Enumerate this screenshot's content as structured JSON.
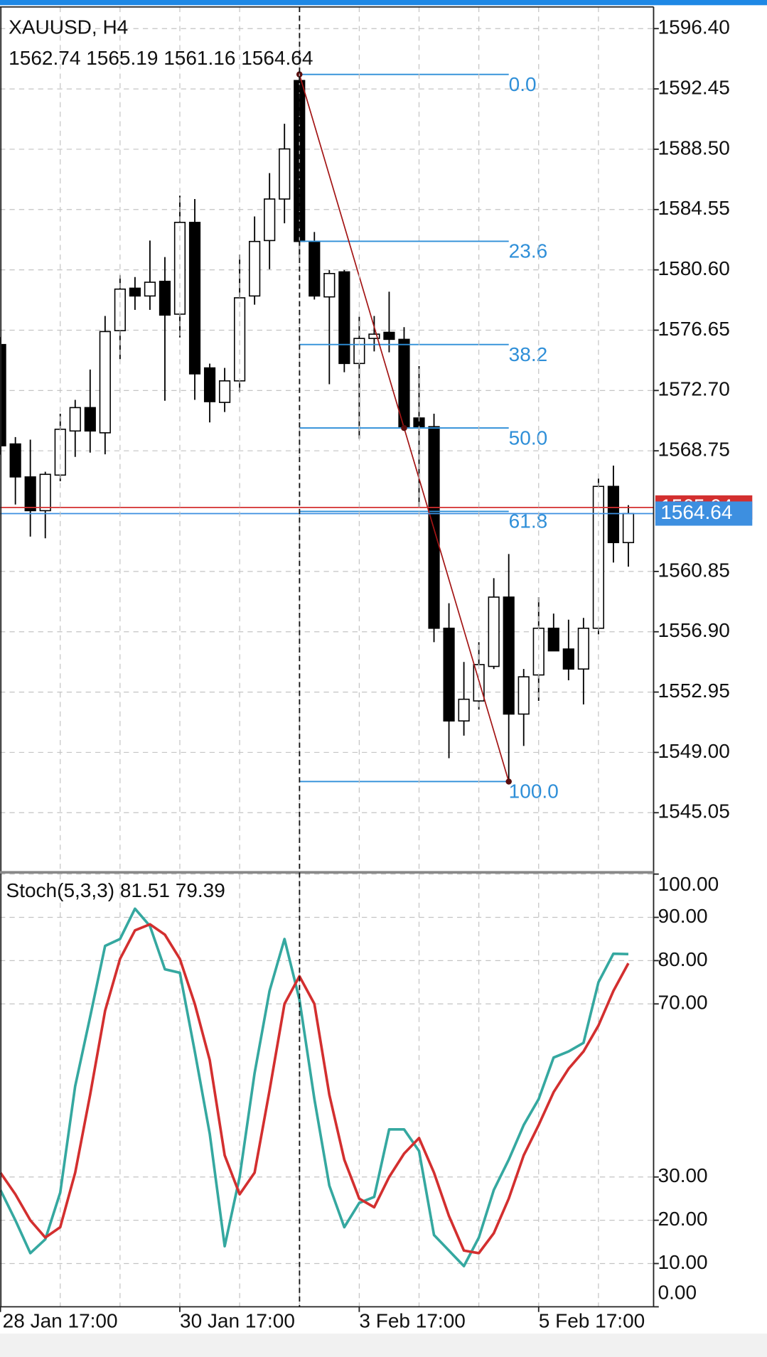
{
  "chart_data": [
    {
      "type": "candlestick",
      "title": "XAUUSD, H4",
      "open": [
        1575.71,
        1569.2,
        1567.04,
        1564.83,
        1567.16,
        1570.05,
        1571.58,
        1569.93,
        1576.62,
        1579.4,
        1578.89,
        1579.85,
        1577.7,
        1583.71,
        1574.18,
        1571.92,
        1573.33,
        1578.89,
        1582.52,
        1585.24,
        1593.0,
        1582.46,
        1578.83,
        1580.47,
        1574.47,
        1576.11,
        1576.51,
        1576.05,
        1570.9,
        1570.33,
        1557.13,
        1551.06,
        1552.37,
        1554.63,
        1559.17,
        1551.51,
        1554.07,
        1557.13,
        1555.77,
        1554.46,
        1557.13,
        1566.42,
        1562.74
      ],
      "high": [
        1576.2,
        1569.65,
        1569.48,
        1567.38,
        1571.18,
        1572.09,
        1574.07,
        1577.58,
        1580.25,
        1580.13,
        1582.52,
        1581.44,
        1585.46,
        1585.24,
        1574.46,
        1574.18,
        1581.61,
        1584.1,
        1586.94,
        1590.17,
        1593.4,
        1583.08,
        1580.59,
        1580.59,
        1577.53,
        1577.58,
        1579.17,
        1576.85,
        1574.3,
        1571.18,
        1558.77,
        1554.92,
        1556.22,
        1560.41,
        1561.99,
        1554.46,
        1559.17,
        1558.09,
        1557.69,
        1557.81,
        1566.93,
        1567.78,
        1565.19
      ],
      "low": [
        1568.5,
        1565.23,
        1563.13,
        1563.02,
        1566.76,
        1568.35,
        1568.63,
        1568.52,
        1574.75,
        1577.98,
        1577.98,
        1572.03,
        1576.17,
        1572.09,
        1570.61,
        1571.29,
        1572.6,
        1578.32,
        1580.64,
        1583.65,
        1581.38,
        1578.66,
        1573.11,
        1573.9,
        1569.54,
        1575.26,
        1575.2,
        1570.22,
        1565.06,
        1556.22,
        1548.62,
        1550.1,
        1551.8,
        1554.46,
        1547.09,
        1549.42,
        1552.37,
        1555.65,
        1553.72,
        1552.14,
        1556.73,
        1561.43,
        1561.16
      ],
      "close": [
        1569.08,
        1567.04,
        1564.83,
        1567.21,
        1570.16,
        1571.58,
        1570.05,
        1576.56,
        1579.34,
        1578.89,
        1579.79,
        1577.64,
        1583.71,
        1573.79,
        1571.97,
        1573.33,
        1578.77,
        1582.46,
        1585.24,
        1588.52,
        1582.46,
        1578.89,
        1580.36,
        1574.47,
        1576.11,
        1576.39,
        1576.05,
        1570.33,
        1570.33,
        1557.13,
        1551.06,
        1552.48,
        1554.75,
        1559.17,
        1551.51,
        1553.95,
        1557.13,
        1555.65,
        1554.46,
        1557.13,
        1566.42,
        1562.74,
        1564.64
      ],
      "up_color": "#ffffff",
      "down_color": "#000000",
      "ylim": [
        1541.2,
        1597.82
      ],
      "yticks": [
        {
          "value": 1596.4,
          "label": "1596.40"
        },
        1592.45,
        {
          "value": 1588.5,
          "label": "1588.50"
        },
        1584.55,
        {
          "value": 1580.6,
          "label": "1580.60"
        },
        1576.65,
        {
          "value": 1572.7,
          "label": "1572.70"
        },
        1568.75,
        1560.85,
        {
          "value": 1556.9,
          "label": "1556.90"
        },
        1552.95,
        {
          "value": 1549,
          "label": "1549.00"
        },
        1545.05
      ],
      "grid": true,
      "fibonacci": {
        "from": {
          "index": 20,
          "price": 1593.4
        },
        "to": {
          "index": 34,
          "price": 1547.09
        },
        "levels": [
          {
            "value": 0,
            "label": "0.0"
          },
          23.6,
          38.2,
          {
            "value": 50,
            "label": "50.0"
          },
          61.8,
          {
            "value": 100,
            "label": "100.0"
          }
        ],
        "color": "#2f8fd8",
        "trend_color": "#a31515"
      },
      "ask": {
        "value": 1565.04,
        "color": "#d32f2f"
      },
      "bid": {
        "value": 1564.64,
        "color": "#3d8fe0"
      }
    },
    {
      "type": "line",
      "title": "Stoch(5,3,3)",
      "categories": [
        "28 Jan 17:00",
        null,
        null,
        null,
        null,
        null,
        null,
        null,
        null,
        null,
        null,
        null,
        "30 Jan 17:00",
        null,
        null,
        null,
        null,
        null,
        null,
        null,
        null,
        null,
        null,
        null,
        "3 Feb 17:00",
        null,
        null,
        null,
        null,
        null,
        null,
        null,
        null,
        null,
        null,
        null,
        "5 Feb 17:00",
        null,
        null,
        null,
        null,
        null,
        null
      ],
      "series": [
        {
          "color": "#35a8a0",
          "values": [
            27,
            20,
            12.4,
            15.6,
            26.4,
            51,
            67,
            83.4,
            85,
            92,
            88,
            78,
            77.2,
            59,
            40,
            14,
            30,
            54,
            73,
            85,
            71,
            48,
            28,
            18.4,
            24,
            25.4,
            41,
            41,
            36,
            16.6,
            13,
            9.4,
            16,
            27,
            34,
            42,
            48,
            57.6,
            59,
            61,
            75,
            81.6,
            81.51
          ]
        },
        {
          "color": "#d32f2f",
          "values": [
            31,
            26,
            20,
            16,
            18.4,
            31,
            49,
            68.4,
            80.4,
            87,
            88.4,
            86,
            80.4,
            70,
            57,
            35,
            26,
            31,
            50,
            70,
            76.4,
            70,
            49,
            34,
            25,
            23,
            30,
            35.4,
            39,
            31,
            21,
            13,
            12.4,
            17,
            25,
            35,
            42,
            49.6,
            55,
            59,
            65,
            73,
            79.39
          ]
        }
      ],
      "ylim": [
        0,
        100
      ],
      "yticks": [
        {
          "value": 100,
          "label": "100.00"
        },
        {
          "value": 90,
          "label": "90.00"
        },
        {
          "value": 80,
          "label": "80.00"
        },
        {
          "value": 70,
          "label": "70.00"
        },
        {
          "value": 30,
          "label": "30.00"
        },
        {
          "value": 20,
          "label": "20.00"
        },
        {
          "value": 10,
          "label": "10.00"
        },
        {
          "value": 0,
          "label": "0.00"
        }
      ],
      "grid": true
    }
  ]
}
